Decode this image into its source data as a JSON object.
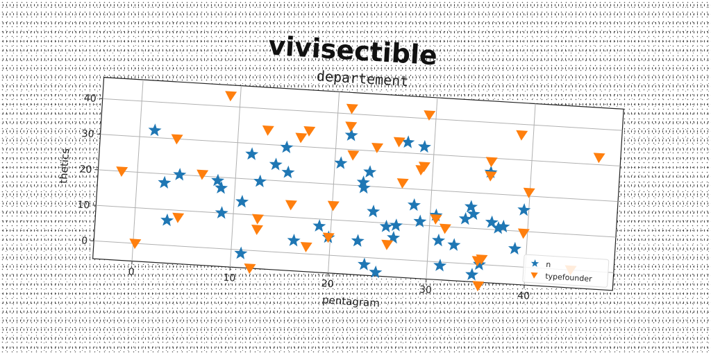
{
  "chart_data": {
    "type": "scatter",
    "suptitle": "vivisectible",
    "title": "departement",
    "xlabel": "pentagram",
    "ylabel": "thetics",
    "xlim": [
      -4,
      49
    ],
    "ylim": [
      -5,
      46
    ],
    "xticks": [
      0,
      10,
      20,
      30,
      40
    ],
    "yticks": [
      0,
      10,
      20,
      30,
      40
    ],
    "grid": true,
    "legend_position": "lower-right",
    "series": [
      {
        "name": "n",
        "marker": "star",
        "color": "#1f77b4",
        "points": [
          [
            1.5,
            32
          ],
          [
            2.8,
            17.5
          ],
          [
            3.3,
            7
          ],
          [
            4.3,
            20
          ],
          [
            8.2,
            19
          ],
          [
            8.6,
            17
          ],
          [
            8.8,
            10
          ],
          [
            10.8,
            13.5
          ],
          [
            11,
            -1
          ],
          [
            11.5,
            27
          ],
          [
            12.5,
            19.5
          ],
          [
            14,
            24.5
          ],
          [
            15,
            29.5
          ],
          [
            15.3,
            22.5
          ],
          [
            16.3,
            3.5
          ],
          [
            18.8,
            8
          ],
          [
            19.8,
            5
          ],
          [
            20.6,
            26
          ],
          [
            21.5,
            34
          ],
          [
            22.8,
            4.5
          ],
          [
            23,
            21
          ],
          [
            23.1,
            19.5
          ],
          [
            23.6,
            24
          ],
          [
            23.6,
            -2
          ],
          [
            24.2,
            13
          ],
          [
            24.8,
            -4
          ],
          [
            25.6,
            9
          ],
          [
            26.4,
            6
          ],
          [
            26.6,
            9.5
          ],
          [
            27.3,
            33
          ],
          [
            28.3,
            15.5
          ],
          [
            29,
            32
          ],
          [
            29,
            11
          ],
          [
            30.6,
            13
          ],
          [
            31,
            6
          ],
          [
            31.3,
            -1
          ],
          [
            32.6,
            5
          ],
          [
            33.6,
            12.5
          ],
          [
            34.1,
            16
          ],
          [
            34.4,
            14
          ],
          [
            34.6,
            -3
          ],
          [
            35.3,
            0
          ],
          [
            35.9,
            26
          ],
          [
            36.3,
            12
          ],
          [
            37,
            10.5
          ],
          [
            37.5,
            11
          ],
          [
            38.8,
            5
          ],
          [
            39.5,
            16
          ]
        ]
      },
      {
        "name": "typefounder",
        "marker": "triangle_down",
        "color": "#ff7f0e",
        "points": [
          [
            -1.6,
            20
          ],
          [
            0.2,
            0
          ],
          [
            3.8,
            30
          ],
          [
            4.4,
            8
          ],
          [
            6.6,
            20.5
          ],
          [
            9,
            43
          ],
          [
            12,
            -5
          ],
          [
            12.5,
            9
          ],
          [
            12.5,
            6
          ],
          [
            13,
            34
          ],
          [
            15.8,
            13.5
          ],
          [
            16.4,
            32.5
          ],
          [
            17.2,
            34.5
          ],
          [
            17.6,
            2
          ],
          [
            19.8,
            5
          ],
          [
            20.1,
            14
          ],
          [
            21.4,
            41.5
          ],
          [
            21.4,
            36.5
          ],
          [
            21.8,
            28.5
          ],
          [
            24.2,
            31
          ],
          [
            25.8,
            4
          ],
          [
            26.4,
            33
          ],
          [
            27,
            21.5
          ],
          [
            28.8,
            25.5
          ],
          [
            29.1,
            26.5
          ],
          [
            29.3,
            41
          ],
          [
            30.6,
            12
          ],
          [
            31.6,
            9.5
          ],
          [
            35.1,
            1
          ],
          [
            35.5,
            1.5
          ],
          [
            35.3,
            -6
          ],
          [
            35.9,
            29
          ],
          [
            35.9,
            25
          ],
          [
            38.8,
            37
          ],
          [
            39.6,
            9.5
          ],
          [
            39.9,
            21
          ],
          [
            44.6,
            0
          ],
          [
            46.8,
            32
          ]
        ]
      }
    ]
  }
}
